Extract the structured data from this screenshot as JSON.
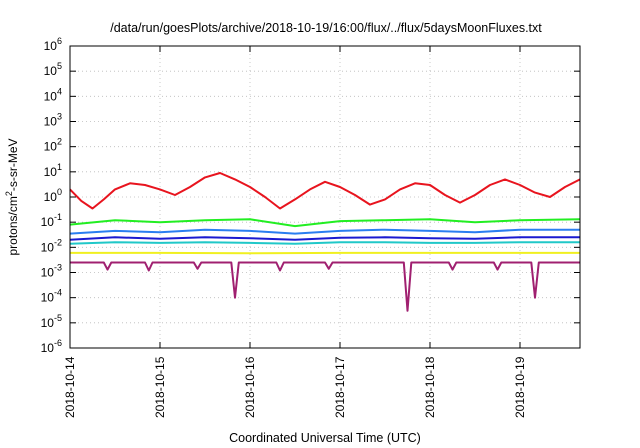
{
  "chart_data": {
    "type": "line",
    "title": "/data/run/goesPlots/archive/2018-10-19/16:00/flux/../flux/5daysMoonFluxes.txt",
    "xlabel": "Coordinated Universal Time (UTC)",
    "ylabel": {
      "pre": "protons/cm",
      "sup": "2",
      "post": "-s-sr-MeV"
    },
    "x_range": [
      "2018-10-14T00:00",
      "2018-10-19T16:00"
    ],
    "x_ticks": [
      "2018-10-14",
      "2018-10-15",
      "2018-10-16",
      "2018-10-17",
      "2018-10-18",
      "2018-10-19"
    ],
    "y_scale": "log",
    "y_range": [
      1e-06,
      1000000.0
    ],
    "y_ticks": [
      {
        "base": "10",
        "exp": "6"
      },
      {
        "base": "10",
        "exp": "5"
      },
      {
        "base": "10",
        "exp": "4"
      },
      {
        "base": "10",
        "exp": "3"
      },
      {
        "base": "10",
        "exp": "2"
      },
      {
        "base": "10",
        "exp": "1"
      },
      {
        "base": "10",
        "exp": "0"
      },
      {
        "base": "10",
        "exp": "-1"
      },
      {
        "base": "10",
        "exp": "-2"
      },
      {
        "base": "10",
        "exp": "-3"
      },
      {
        "base": "10",
        "exp": "-4"
      },
      {
        "base": "10",
        "exp": "-5"
      },
      {
        "base": "10",
        "exp": "-6"
      }
    ],
    "grid": true,
    "series": [
      {
        "color": "#e8141e",
        "points": [
          [
            "2018-10-14T00:00",
            2.0
          ],
          [
            "2018-10-14T03:00",
            0.7
          ],
          [
            "2018-10-14T06:00",
            0.35
          ],
          [
            "2018-10-14T09:00",
            0.8
          ],
          [
            "2018-10-14T12:00",
            2.0
          ],
          [
            "2018-10-14T16:00",
            3.5
          ],
          [
            "2018-10-14T20:00",
            3.0
          ],
          [
            "2018-10-15T00:00",
            2.0
          ],
          [
            "2018-10-15T04:00",
            1.2
          ],
          [
            "2018-10-15T08:00",
            2.5
          ],
          [
            "2018-10-15T12:00",
            6.0
          ],
          [
            "2018-10-15T16:00",
            9.0
          ],
          [
            "2018-10-15T20:00",
            5.0
          ],
          [
            "2018-10-16T00:00",
            2.5
          ],
          [
            "2018-10-16T04:00",
            1.0
          ],
          [
            "2018-10-16T08:00",
            0.35
          ],
          [
            "2018-10-16T12:00",
            0.8
          ],
          [
            "2018-10-16T16:00",
            2.0
          ],
          [
            "2018-10-16T20:00",
            4.0
          ],
          [
            "2018-10-17T00:00",
            2.5
          ],
          [
            "2018-10-17T04:00",
            1.2
          ],
          [
            "2018-10-17T08:00",
            0.5
          ],
          [
            "2018-10-17T12:00",
            0.8
          ],
          [
            "2018-10-17T16:00",
            2.0
          ],
          [
            "2018-10-17T20:00",
            3.5
          ],
          [
            "2018-10-18T00:00",
            3.0
          ],
          [
            "2018-10-18T04:00",
            1.2
          ],
          [
            "2018-10-18T08:00",
            0.6
          ],
          [
            "2018-10-18T12:00",
            1.2
          ],
          [
            "2018-10-18T16:00",
            3.0
          ],
          [
            "2018-10-18T20:00",
            5.0
          ],
          [
            "2018-10-19T00:00",
            3.0
          ],
          [
            "2018-10-19T04:00",
            1.5
          ],
          [
            "2018-10-19T08:00",
            1.0
          ],
          [
            "2018-10-19T12:00",
            2.5
          ],
          [
            "2018-10-19T16:00",
            5.0
          ]
        ]
      },
      {
        "color": "#22ee22",
        "points": [
          [
            "2018-10-14T00:00",
            0.08
          ],
          [
            "2018-10-14T12:00",
            0.12
          ],
          [
            "2018-10-15T00:00",
            0.1
          ],
          [
            "2018-10-15T12:00",
            0.12
          ],
          [
            "2018-10-16T00:00",
            0.13
          ],
          [
            "2018-10-16T12:00",
            0.07
          ],
          [
            "2018-10-17T00:00",
            0.11
          ],
          [
            "2018-10-17T12:00",
            0.12
          ],
          [
            "2018-10-18T00:00",
            0.13
          ],
          [
            "2018-10-18T12:00",
            0.1
          ],
          [
            "2018-10-19T00:00",
            0.12
          ],
          [
            "2018-10-19T16:00",
            0.13
          ]
        ]
      },
      {
        "color": "#2a7ef0",
        "points": [
          [
            "2018-10-14T00:00",
            0.035
          ],
          [
            "2018-10-14T12:00",
            0.045
          ],
          [
            "2018-10-15T00:00",
            0.04
          ],
          [
            "2018-10-15T12:00",
            0.05
          ],
          [
            "2018-10-16T00:00",
            0.045
          ],
          [
            "2018-10-16T12:00",
            0.035
          ],
          [
            "2018-10-17T00:00",
            0.045
          ],
          [
            "2018-10-17T12:00",
            0.05
          ],
          [
            "2018-10-18T00:00",
            0.045
          ],
          [
            "2018-10-18T12:00",
            0.04
          ],
          [
            "2018-10-19T00:00",
            0.05
          ],
          [
            "2018-10-19T16:00",
            0.05
          ]
        ]
      },
      {
        "color": "#1a1ad0",
        "points": [
          [
            "2018-10-14T00:00",
            0.02
          ],
          [
            "2018-10-14T12:00",
            0.025
          ],
          [
            "2018-10-15T00:00",
            0.022
          ],
          [
            "2018-10-15T12:00",
            0.025
          ],
          [
            "2018-10-16T00:00",
            0.023
          ],
          [
            "2018-10-16T12:00",
            0.02
          ],
          [
            "2018-10-17T00:00",
            0.024
          ],
          [
            "2018-10-17T12:00",
            0.025
          ],
          [
            "2018-10-18T00:00",
            0.023
          ],
          [
            "2018-10-18T12:00",
            0.022
          ],
          [
            "2018-10-19T00:00",
            0.025
          ],
          [
            "2018-10-19T16:00",
            0.025
          ]
        ]
      },
      {
        "color": "#20c8c8",
        "points": [
          [
            "2018-10-14T00:00",
            0.014
          ],
          [
            "2018-10-14T12:00",
            0.016
          ],
          [
            "2018-10-15T00:00",
            0.015
          ],
          [
            "2018-10-15T12:00",
            0.016
          ],
          [
            "2018-10-16T00:00",
            0.015
          ],
          [
            "2018-10-16T12:00",
            0.014
          ],
          [
            "2018-10-17T00:00",
            0.016
          ],
          [
            "2018-10-17T12:00",
            0.016
          ],
          [
            "2018-10-18T00:00",
            0.015
          ],
          [
            "2018-10-18T12:00",
            0.015
          ],
          [
            "2018-10-19T00:00",
            0.016
          ],
          [
            "2018-10-19T16:00",
            0.016
          ]
        ]
      },
      {
        "color": "#f0f020",
        "points": [
          [
            "2018-10-14T00:00",
            0.006
          ],
          [
            "2018-10-15T00:00",
            0.006
          ],
          [
            "2018-10-16T00:00",
            0.0058
          ],
          [
            "2018-10-17T00:00",
            0.006
          ],
          [
            "2018-10-18T00:00",
            0.006
          ],
          [
            "2018-10-19T00:00",
            0.006
          ],
          [
            "2018-10-19T16:00",
            0.006
          ]
        ]
      },
      {
        "color": "#a02070",
        "points": [
          [
            "2018-10-14T00:00",
            0.0025
          ],
          [
            "2018-10-14T09:00",
            0.0025
          ],
          [
            "2018-10-14T10:00",
            0.0013
          ],
          [
            "2018-10-14T11:00",
            0.0025
          ],
          [
            "2018-10-14T20:00",
            0.0025
          ],
          [
            "2018-10-14T21:00",
            0.0012
          ],
          [
            "2018-10-14T22:00",
            0.0025
          ],
          [
            "2018-10-15T09:00",
            0.0025
          ],
          [
            "2018-10-15T10:00",
            0.0014
          ],
          [
            "2018-10-15T11:00",
            0.0025
          ],
          [
            "2018-10-15T19:00",
            0.0025
          ],
          [
            "2018-10-15T20:00",
            0.0001
          ],
          [
            "2018-10-15T21:00",
            0.0025
          ],
          [
            "2018-10-16T07:00",
            0.0025
          ],
          [
            "2018-10-16T08:00",
            0.0012
          ],
          [
            "2018-10-16T09:00",
            0.0025
          ],
          [
            "2018-10-16T20:00",
            0.0025
          ],
          [
            "2018-10-16T21:00",
            0.0014
          ],
          [
            "2018-10-16T22:00",
            0.0025
          ],
          [
            "2018-10-17T17:00",
            0.0025
          ],
          [
            "2018-10-17T18:00",
            3e-05
          ],
          [
            "2018-10-17T19:00",
            0.0025
          ],
          [
            "2018-10-18T05:00",
            0.0025
          ],
          [
            "2018-10-18T06:00",
            0.0013
          ],
          [
            "2018-10-18T07:00",
            0.0025
          ],
          [
            "2018-10-18T17:00",
            0.0025
          ],
          [
            "2018-10-18T18:00",
            0.0013
          ],
          [
            "2018-10-18T19:00",
            0.0025
          ],
          [
            "2018-10-19T03:00",
            0.0025
          ],
          [
            "2018-10-19T04:00",
            0.0001
          ],
          [
            "2018-10-19T05:00",
            0.0025
          ],
          [
            "2018-10-19T16:00",
            0.0025
          ]
        ]
      }
    ]
  }
}
